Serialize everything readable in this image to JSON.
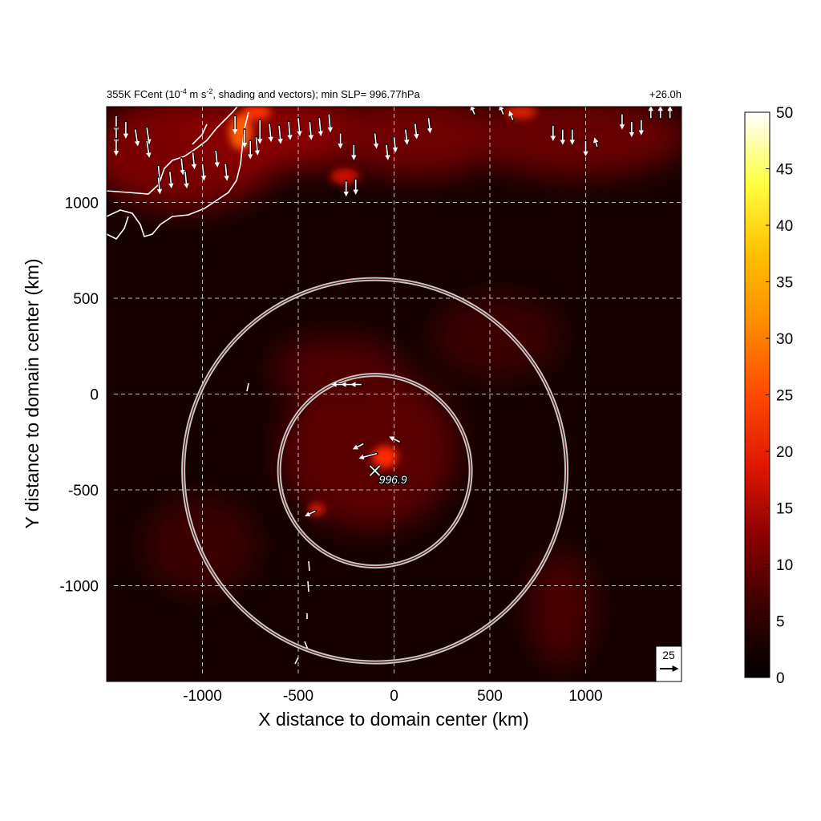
{
  "chart_data": {
    "type": "heatmap",
    "title_left": "355K FCent (10",
    "title_exp1": "-4",
    "title_mid": " m s",
    "title_exp2": "-2",
    "title_end": ", shading and vectors); min SLP= 996.77hPa",
    "title_right": "+26.0h",
    "xlabel": "X distance to domain center (km)",
    "ylabel": "Y distance to domain center (km)",
    "xlim": [
      -1500,
      1500
    ],
    "ylim": [
      -1500,
      1500
    ],
    "x_ticks": [
      -1000,
      -500,
      0,
      500,
      1000
    ],
    "y_ticks": [
      -1000,
      -500,
      0,
      500,
      1000
    ],
    "x_tick_labels": [
      "-1000",
      "-500",
      "0",
      "500",
      "1000"
    ],
    "y_tick_labels": [
      "-1000",
      "-500",
      "0",
      "500",
      "1000"
    ],
    "grid": true,
    "colorbar": {
      "min": 0,
      "max": 50,
      "ticks": [
        0,
        5,
        10,
        15,
        20,
        25,
        30,
        35,
        40,
        45,
        50
      ],
      "tick_labels": [
        "0",
        "5",
        "10",
        "15",
        "20",
        "25",
        "30",
        "35",
        "40",
        "45",
        "50"
      ],
      "colormap": [
        "#000000",
        "#3a0000",
        "#8b0000",
        "#e01800",
        "#ff4a00",
        "#ff8c00",
        "#ffc000",
        "#ffff40",
        "#ffffff"
      ]
    },
    "storm_center": {
      "x": -100,
      "y": -400,
      "label": "996.9",
      "marker": "x"
    },
    "range_rings": [
      {
        "center_x": -100,
        "center_y": -400,
        "radius": 500
      },
      {
        "center_x": -100,
        "center_y": -400,
        "radius": 1000
      }
    ],
    "reference_vector": {
      "value": "25",
      "direction": "east"
    },
    "vectors": [
      {
        "x": -1450,
        "y": 1450,
        "u": 0,
        "v": -20
      },
      {
        "x": -1450,
        "y": 1390,
        "u": 0,
        "v": -20
      },
      {
        "x": -1450,
        "y": 1330,
        "u": 0,
        "v": -20
      },
      {
        "x": -1400,
        "y": 1420,
        "u": 0,
        "v": -20
      },
      {
        "x": -1350,
        "y": 1380,
        "u": 3,
        "v": -20
      },
      {
        "x": -1290,
        "y": 1390,
        "u": 3,
        "v": -20
      },
      {
        "x": -1290,
        "y": 1320,
        "u": 3,
        "v": -20
      },
      {
        "x": -1230,
        "y": 1190,
        "u": 2,
        "v": -20
      },
      {
        "x": -1230,
        "y": 1130,
        "u": 2,
        "v": -20
      },
      {
        "x": -1170,
        "y": 1160,
        "u": 2,
        "v": -20
      },
      {
        "x": -1110,
        "y": 1230,
        "u": 2,
        "v": -20
      },
      {
        "x": -1090,
        "y": 1160,
        "u": 2,
        "v": -20
      },
      {
        "x": -1050,
        "y": 1260,
        "u": 2,
        "v": -20
      },
      {
        "x": -1000,
        "y": 1200,
        "u": 2,
        "v": -20
      },
      {
        "x": -930,
        "y": 1270,
        "u": 2,
        "v": -20
      },
      {
        "x": -880,
        "y": 1200,
        "u": 2,
        "v": -20
      },
      {
        "x": -830,
        "y": 1450,
        "u": 0,
        "v": -22
      },
      {
        "x": -780,
        "y": 1380,
        "u": 0,
        "v": -22
      },
      {
        "x": -750,
        "y": 1320,
        "u": 0,
        "v": -22
      },
      {
        "x": -700,
        "y": 1430,
        "u": 0,
        "v": -30
      },
      {
        "x": -720,
        "y": 1340,
        "u": 2,
        "v": -22
      },
      {
        "x": -650,
        "y": 1410,
        "u": 2,
        "v": -22
      },
      {
        "x": -600,
        "y": 1400,
        "u": 2,
        "v": -22
      },
      {
        "x": -550,
        "y": 1420,
        "u": 2,
        "v": -22
      },
      {
        "x": -500,
        "y": 1440,
        "u": 2,
        "v": -22
      },
      {
        "x": -440,
        "y": 1420,
        "u": 2,
        "v": -22
      },
      {
        "x": -390,
        "y": 1440,
        "u": 2,
        "v": -22
      },
      {
        "x": -340,
        "y": 1460,
        "u": 2,
        "v": -22
      },
      {
        "x": -280,
        "y": 1360,
        "u": 0,
        "v": -18
      },
      {
        "x": -210,
        "y": 1300,
        "u": 0,
        "v": -18
      },
      {
        "x": -250,
        "y": 1110,
        "u": 0,
        "v": -18
      },
      {
        "x": -200,
        "y": 1120,
        "u": 0,
        "v": -18
      },
      {
        "x": -100,
        "y": 1360,
        "u": 2,
        "v": -18
      },
      {
        "x": -40,
        "y": 1300,
        "u": 2,
        "v": -18
      },
      {
        "x": 0,
        "y": 1340,
        "u": 2,
        "v": -18
      },
      {
        "x": 60,
        "y": 1380,
        "u": 2,
        "v": -18
      },
      {
        "x": 110,
        "y": 1410,
        "u": 2,
        "v": -18
      },
      {
        "x": 180,
        "y": 1440,
        "u": 2,
        "v": -18
      },
      {
        "x": 420,
        "y": 1460,
        "u": -4,
        "v": 10
      },
      {
        "x": 570,
        "y": 1460,
        "u": -4,
        "v": 10
      },
      {
        "x": 620,
        "y": 1430,
        "u": -4,
        "v": 10
      },
      {
        "x": 830,
        "y": 1400,
        "u": 0,
        "v": -18
      },
      {
        "x": 880,
        "y": 1380,
        "u": 0,
        "v": -18
      },
      {
        "x": 930,
        "y": 1380,
        "u": 0,
        "v": -18
      },
      {
        "x": 1000,
        "y": 1320,
        "u": 0,
        "v": -18
      },
      {
        "x": 1060,
        "y": 1290,
        "u": -3,
        "v": 10
      },
      {
        "x": 1190,
        "y": 1460,
        "u": 0,
        "v": -18
      },
      {
        "x": 1240,
        "y": 1420,
        "u": 0,
        "v": -18
      },
      {
        "x": 1290,
        "y": 1430,
        "u": 0,
        "v": -18
      },
      {
        "x": 1340,
        "y": 1440,
        "u": 0,
        "v": 14
      },
      {
        "x": 1390,
        "y": 1440,
        "u": 0,
        "v": 14
      },
      {
        "x": 1440,
        "y": 1440,
        "u": 0,
        "v": 14
      },
      {
        "x": -270,
        "y": 50,
        "u": -12,
        "v": 0
      },
      {
        "x": -220,
        "y": 50,
        "u": -12,
        "v": 0
      },
      {
        "x": -170,
        "y": 50,
        "u": -12,
        "v": 0
      },
      {
        "x": -160,
        "y": -260,
        "u": -12,
        "v": -6
      },
      {
        "x": -90,
        "y": -310,
        "u": -22,
        "v": -6
      },
      {
        "x": 30,
        "y": -250,
        "u": -12,
        "v": 6
      },
      {
        "x": -410,
        "y": -610,
        "u": -12,
        "v": -6
      }
    ]
  }
}
